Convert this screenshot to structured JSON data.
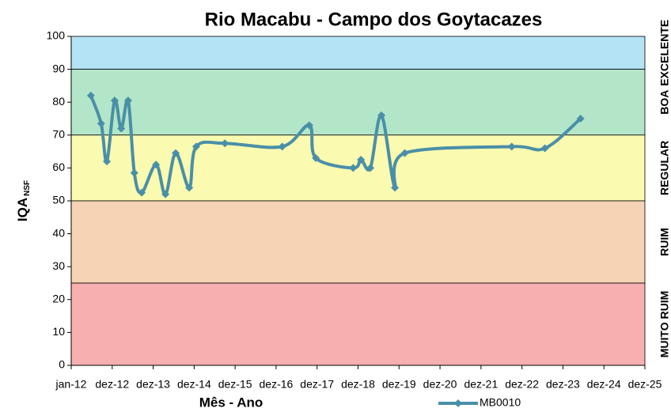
{
  "chart_data": {
    "type": "line",
    "title": "Rio Macabu - Campo dos Goytacazes",
    "x_label": "Mês - Ano",
    "y_label": "IQA",
    "y_label_sub": "NSF",
    "x": [
      2012.48,
      2012.73,
      2012.87,
      2013.06,
      2013.22,
      2013.39,
      2013.54,
      2013.72,
      2014.07,
      2014.3,
      2014.55,
      2014.88,
      2015.05,
      2015.75,
      2017.15,
      2017.81,
      2017.97,
      2018.88,
      2019.07,
      2019.3,
      2019.57,
      2019.9,
      2020.14,
      2022.75,
      2023.56,
      2024.43
    ],
    "series": [
      {
        "name": "MB0010",
        "color": "#4a8fa8",
        "values": [
          82,
          73.5,
          62,
          80.5,
          72,
          80.5,
          58.5,
          52.5,
          61,
          52,
          64.5,
          54,
          66.5,
          67.5,
          66.5,
          73,
          63,
          60,
          62.5,
          60,
          76,
          54,
          64.5,
          66.5,
          66,
          75
        ]
      }
    ],
    "xlim": [
      2012,
      2026
    ],
    "xticks": [
      {
        "value": 2012,
        "label": "jan-12"
      },
      {
        "value": 2013,
        "label": "dez-12"
      },
      {
        "value": 2014,
        "label": "dez-13"
      },
      {
        "value": 2015,
        "label": "dez-14"
      },
      {
        "value": 2016,
        "label": "dez-15"
      },
      {
        "value": 2017,
        "label": "dez-16"
      },
      {
        "value": 2018,
        "label": "dez-17"
      },
      {
        "value": 2019,
        "label": "dez-18"
      },
      {
        "value": 2020,
        "label": "dez-19"
      },
      {
        "value": 2021,
        "label": "dez-20"
      },
      {
        "value": 2022,
        "label": "dez-21"
      },
      {
        "value": 2023,
        "label": "dez-22"
      },
      {
        "value": 2024,
        "label": "dez-23"
      },
      {
        "value": 2025,
        "label": "dez-24"
      },
      {
        "value": 2026,
        "label": "dez-25"
      }
    ],
    "ylim": [
      0,
      100
    ],
    "yticks": [
      0,
      10,
      20,
      30,
      40,
      50,
      60,
      70,
      80,
      90,
      100
    ],
    "bands": [
      {
        "label": "EXCELENTE",
        "from": 90,
        "to": 100,
        "color": "#b3e3f5"
      },
      {
        "label": "BOA",
        "from": 70,
        "to": 90,
        "color": "#b3e6c8"
      },
      {
        "label": "REGULAR",
        "from": 50,
        "to": 70,
        "color": "#fafab0"
      },
      {
        "label": "RUIM",
        "from": 25,
        "to": 50,
        "color": "#f6d3b4"
      },
      {
        "label": "MUITO RUIM",
        "from": 0,
        "to": 25,
        "color": "#f8afb0"
      }
    ],
    "legend": "bottom"
  }
}
